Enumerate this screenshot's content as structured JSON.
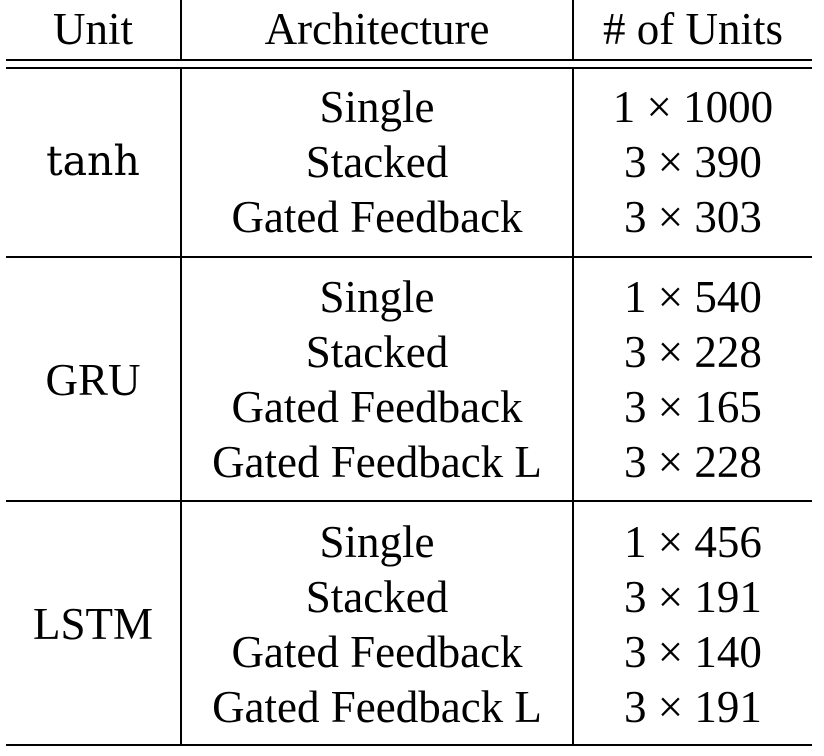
{
  "header": {
    "unit": "Unit",
    "architecture": "Architecture",
    "num_units": "# of Units"
  },
  "groups": [
    {
      "unit": "tanh",
      "rows": [
        {
          "architecture": "Single",
          "units": "1 × 1000"
        },
        {
          "architecture": "Stacked",
          "units": "3 × 390"
        },
        {
          "architecture": "Gated Feedback",
          "units": "3 × 303"
        }
      ]
    },
    {
      "unit": "GRU",
      "rows": [
        {
          "architecture": "Single",
          "units": "1 × 540"
        },
        {
          "architecture": "Stacked",
          "units": "3 × 228"
        },
        {
          "architecture": "Gated Feedback",
          "units": "3 × 165"
        },
        {
          "architecture": "Gated Feedback L",
          "units": "3 × 228"
        }
      ]
    },
    {
      "unit": "LSTM",
      "rows": [
        {
          "architecture": "Single",
          "units": "1 × 456"
        },
        {
          "architecture": "Stacked",
          "units": "3 × 191"
        },
        {
          "architecture": "Gated Feedback",
          "units": "3 × 140"
        },
        {
          "architecture": "Gated Feedback L",
          "units": "3 × 191"
        }
      ]
    }
  ]
}
